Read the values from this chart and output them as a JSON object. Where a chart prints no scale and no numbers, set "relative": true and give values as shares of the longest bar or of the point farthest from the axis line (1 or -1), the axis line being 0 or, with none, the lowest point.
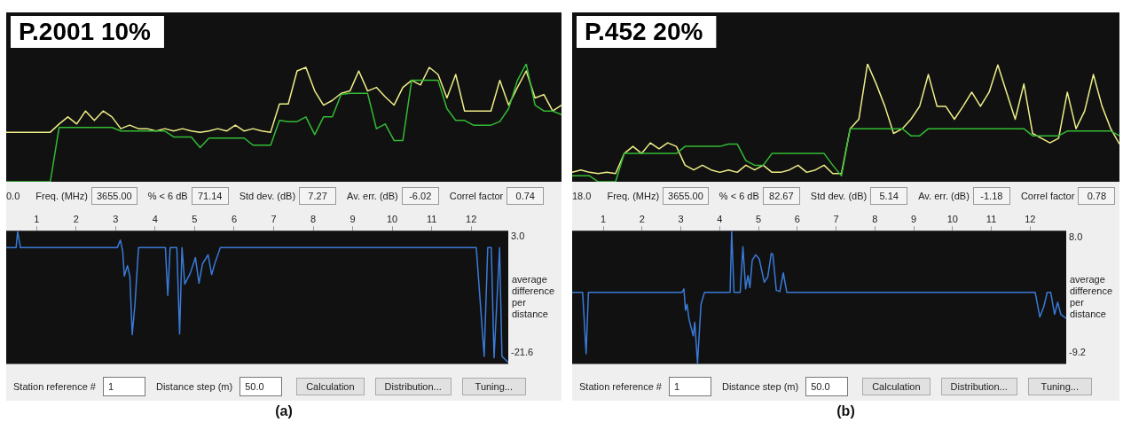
{
  "chart_data": [
    {
      "type": "line",
      "title": "P.2001 10%",
      "relative": true,
      "categories": [
        null,
        null,
        null,
        null,
        null,
        null,
        null,
        null,
        null,
        null,
        null,
        null,
        null,
        null,
        null,
        null,
        null,
        null,
        null,
        null,
        null,
        null,
        null,
        null,
        null,
        null,
        null,
        null,
        null,
        null,
        null,
        null,
        null,
        null,
        null,
        null,
        null,
        null,
        null,
        null,
        null,
        null,
        null,
        null,
        null,
        null,
        null,
        null,
        null,
        null,
        null,
        null,
        null,
        null,
        null,
        null,
        null,
        null,
        null,
        null,
        null,
        null,
        null,
        null
      ],
      "series": [
        {
          "color": "#33bb33",
          "values": [
            0,
            0,
            0,
            0,
            0,
            0,
            0.46,
            0.46,
            0.46,
            0.46,
            0.46,
            0.46,
            0.46,
            0.43,
            0.43,
            0.43,
            0.43,
            0.43,
            0.43,
            0.38,
            0.38,
            0.38,
            0.29,
            0.37,
            0.37,
            0.37,
            0.37,
            0.37,
            0.31,
            0.31,
            0.31,
            0.52,
            0.51,
            0.51,
            0.55,
            0.4,
            0.55,
            0.55,
            0.74,
            0.75,
            0.75,
            0.75,
            0.45,
            0.49,
            0.35,
            0.35,
            0.86,
            0.86,
            0.86,
            0.86,
            0.62,
            0.52,
            0.52,
            0.48,
            0.48,
            0.48,
            0.51,
            0.62,
            0.86,
            1,
            0.65,
            0.6,
            0.6,
            0.57
          ]
        },
        {
          "color": "#eeee88",
          "values": [
            0.42,
            0.42,
            0.42,
            0.42,
            0.42,
            0.42,
            0.49,
            0.55,
            0.49,
            0.6,
            0.52,
            0.6,
            0.55,
            0.45,
            0.48,
            0.45,
            0.45,
            0.43,
            0.45,
            0.43,
            0.45,
            0.43,
            0.42,
            0.43,
            0.45,
            0.43,
            0.48,
            0.43,
            0.45,
            0.43,
            0.42,
            0.66,
            0.66,
            0.94,
            0.97,
            0.77,
            0.65,
            0.69,
            0.75,
            0.77,
            0.94,
            0.77,
            0.8,
            0.72,
            0.65,
            0.8,
            0.86,
            0.82,
            0.97,
            0.91,
            0.71,
            0.91,
            0.6,
            0.6,
            0.6,
            0.6,
            0.86,
            0.65,
            0.8,
            0.94,
            0.71,
            0.74,
            0.6,
            0.65
          ]
        }
      ]
    },
    {
      "type": "other",
      "annotations": [
        "0.0",
        "Freq. (MHz)",
        "3655.00",
        "% < 6 dB",
        "71.14",
        "Std dev. (dB)",
        "7.27",
        "Av. err. (dB)",
        "-6.02",
        "Correl factor",
        "0.74"
      ]
    },
    {
      "type": "line",
      "ylabel": "average difference per distance",
      "xlim": [
        0.23,
        12.94
      ],
      "xticks": [
        1,
        2,
        3,
        4,
        5,
        6,
        7,
        8,
        9,
        10,
        11,
        12
      ],
      "ylim": [
        -23.9,
        4.3
      ],
      "yticks": [
        {
          "value": 3.0,
          "label": "3.0"
        },
        {
          "value": -21.6,
          "label": "-21.6"
        }
      ],
      "series": [
        {
          "color": "#3a7ad8",
          "x": [
            0.23,
            0.48,
            0.52,
            0.59,
            3.04,
            3.12,
            3.18,
            3.22,
            3.3,
            3.36,
            3.42,
            3.49,
            3.58,
            4.26,
            4.32,
            4.38,
            4.55,
            4.57,
            4.62,
            4.68,
            4.75,
            4.89,
            5.02,
            5.11,
            5.2,
            5.34,
            5.43,
            5.52,
            5.65,
            12.13,
            12.33,
            12.42,
            12.51,
            12.58,
            12.72,
            12.78,
            12.85,
            12.94
          ],
          "values": [
            0.7,
            0.7,
            4.1,
            0.7,
            0.7,
            2.3,
            -0.1,
            -5.3,
            -3.1,
            -5.3,
            -17.7,
            -11.2,
            0.7,
            0.7,
            -9.4,
            0.7,
            0.7,
            -4.7,
            -17.6,
            0.7,
            -7.0,
            -4.7,
            -1.4,
            -6.8,
            -2.7,
            -0.8,
            -5.0,
            -2.4,
            0.7,
            0.7,
            -22.3,
            0.7,
            0.7,
            -22.6,
            0.7,
            -22.3,
            -22.9,
            -23.6
          ]
        }
      ]
    },
    {
      "type": "other",
      "annotations": [
        "Station reference #",
        "1",
        "Distance step (m)",
        "50.0",
        "Calculation",
        "Distribution...",
        "Tuning...",
        "(a)"
      ]
    },
    {
      "type": "line",
      "title": "P.452 20%",
      "relative": true,
      "categories": [
        null,
        null,
        null,
        null,
        null,
        null,
        null,
        null,
        null,
        null,
        null,
        null,
        null,
        null,
        null,
        null,
        null,
        null,
        null,
        null,
        null,
        null,
        null,
        null,
        null,
        null,
        null,
        null,
        null,
        null,
        null,
        null,
        null,
        null,
        null,
        null,
        null,
        null,
        null,
        null,
        null,
        null,
        null,
        null,
        null,
        null,
        null,
        null,
        null,
        null,
        null,
        null,
        null,
        null,
        null,
        null,
        null,
        null,
        null,
        null,
        null,
        null,
        null,
        null
      ],
      "series": [
        {
          "color": "#33bb33",
          "values": [
            0.05,
            0.05,
            0.05,
            0,
            0,
            0,
            0.24,
            0.24,
            0.24,
            0.24,
            0.24,
            0.24,
            0.24,
            0.3,
            0.3,
            0.3,
            0.3,
            0.3,
            0.32,
            0.32,
            0.18,
            0.14,
            0.14,
            0.24,
            0.24,
            0.24,
            0.24,
            0.24,
            0.24,
            0.24,
            0.14,
            0.05,
            0.45,
            0.45,
            0.45,
            0.45,
            0.45,
            0.45,
            0.45,
            0.39,
            0.39,
            0.45,
            0.45,
            0.45,
            0.45,
            0.45,
            0.45,
            0.45,
            0.45,
            0.45,
            0.45,
            0.45,
            0.45,
            0.39,
            0.39,
            0.39,
            0.39,
            0.43,
            0.43,
            0.43,
            0.43,
            0.43,
            0.43,
            0.39
          ]
        },
        {
          "color": "#eeee88",
          "values": [
            0.08,
            0.1,
            0.08,
            0.07,
            0.08,
            0.07,
            0.24,
            0.3,
            0.24,
            0.33,
            0.28,
            0.33,
            0.3,
            0.14,
            0.1,
            0.14,
            0.1,
            0.08,
            0.1,
            0.08,
            0.14,
            0.1,
            0.14,
            0.08,
            0.08,
            0.1,
            0.14,
            0.08,
            0.1,
            0.14,
            0.07,
            0.07,
            0.45,
            0.53,
            1,
            0.83,
            0.64,
            0.41,
            0.45,
            0.53,
            0.64,
            0.91,
            0.64,
            0.64,
            0.53,
            0.64,
            0.76,
            0.64,
            0.76,
            0.99,
            0.76,
            0.53,
            0.83,
            0.41,
            0.37,
            0.33,
            0.37,
            0.76,
            0.45,
            0.6,
            0.91,
            0.64,
            0.45,
            0.32
          ]
        }
      ]
    },
    {
      "type": "other",
      "annotations": [
        "18.0",
        "Freq. (MHz)",
        "3655.00",
        "% < 6 dB",
        "82.67",
        "Std dev. (dB)",
        "5.14",
        "Av. err. (dB)",
        "-1.18",
        "Correl factor",
        "0.78"
      ]
    },
    {
      "type": "line",
      "ylabel": "average difference per distance",
      "xlim": [
        0.2,
        12.93
      ],
      "xticks": [
        1,
        2,
        3,
        4,
        5,
        6,
        7,
        8,
        9,
        10,
        11,
        12
      ],
      "ylim": [
        -10.9,
        9.0
      ],
      "yticks": [
        {
          "value": 8.0,
          "label": "8.0"
        },
        {
          "value": -9.2,
          "label": "-9.2"
        }
      ],
      "series": [
        {
          "color": "#3a7ad8",
          "x": [
            0.2,
            0.47,
            0.56,
            0.62,
            3.03,
            3.08,
            3.12,
            3.16,
            3.21,
            3.32,
            3.36,
            3.43,
            3.52,
            3.61,
            4.27,
            4.31,
            4.37,
            4.53,
            4.6,
            4.67,
            4.73,
            4.78,
            4.84,
            4.93,
            5.02,
            5.15,
            5.24,
            5.33,
            5.37,
            5.46,
            5.55,
            5.64,
            5.73,
            12.13,
            12.25,
            12.35,
            12.44,
            12.53,
            12.63,
            12.71,
            12.79,
            12.93
          ],
          "values": [
            -0.2,
            -0.2,
            -9.4,
            -0.2,
            -0.2,
            0.3,
            -2.9,
            -2.0,
            -4.2,
            -6.7,
            -4.7,
            -10.8,
            -2.0,
            -0.2,
            -0.2,
            8.9,
            -0.2,
            -0.2,
            6.6,
            0.3,
            2.3,
            0.5,
            4.6,
            5.4,
            4.8,
            1.3,
            2.1,
            5.6,
            5.5,
            0.1,
            -0.1,
            2.7,
            -0.2,
            -0.2,
            -3.9,
            -2.4,
            -0.2,
            -0.2,
            -3.5,
            -1.7,
            -3.5,
            -4.1
          ]
        }
      ]
    },
    {
      "type": "other",
      "annotations": [
        "Station reference #",
        "1",
        "Distance step (m)",
        "50.0",
        "Calculation",
        "Distribution...",
        "Tuning...",
        "(b)"
      ]
    }
  ]
}
